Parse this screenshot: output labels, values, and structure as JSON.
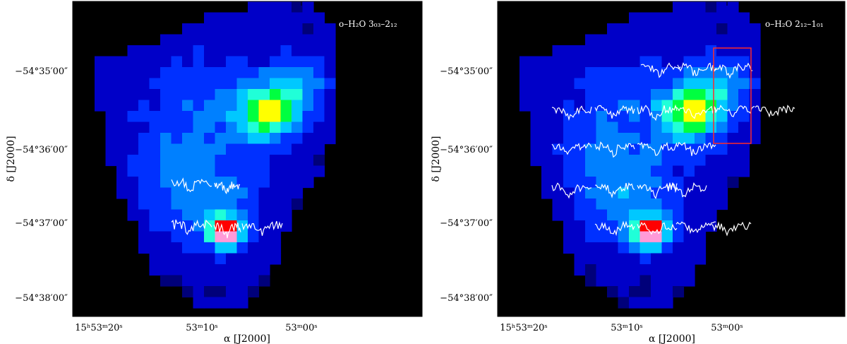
{
  "panels": [
    {
      "id": "left",
      "line_label": "o–H₂O 3₀₃–2₁₂",
      "x_axis": {
        "title": "α [J2000]",
        "ticks": [
          "15ʰ53ᵐ20ˢ",
          "53ᵐ10ˢ",
          "53ᵐ00ˢ"
        ]
      },
      "y_axis": {
        "title": "δ [J2000]",
        "ticks": [
          "−54°35′00″",
          "−54°36′00″",
          "−54°37′00″",
          "−54°38′00″"
        ]
      },
      "box": false
    },
    {
      "id": "right",
      "line_label": "o–H₂O 2₁₂–1₀₁",
      "x_axis": {
        "title": "α [J2000]",
        "ticks": [
          "15ʰ53ᵐ20ˢ",
          "53ᵐ10ˢ",
          "53ᵐ00ˢ"
        ]
      },
      "y_axis": {
        "title": "δ [J2000]",
        "ticks": [
          "−54°35′00″",
          "−54°36′00″",
          "−54°37′00″",
          "−54°38′00″"
        ]
      },
      "box": true
    }
  ],
  "colors": {
    "background": "#000000",
    "spectra": "#ffffff",
    "box": "#ff2a2a",
    "colormap": [
      "#000000",
      "#00007a",
      "#0000c8",
      "#0030ff",
      "#0080ff",
      "#00c8ff",
      "#20ffd8",
      "#00ff40",
      "#ffff00",
      "#ff0000",
      "#ff9ad8"
    ]
  }
}
